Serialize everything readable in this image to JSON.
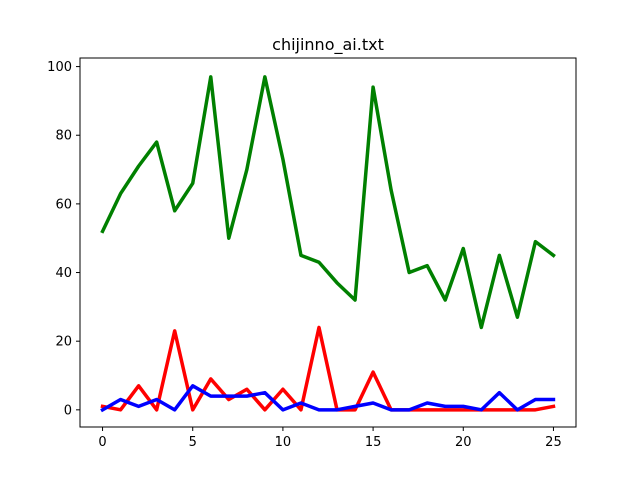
{
  "chart_data": {
    "type": "line",
    "title": "chijinno_ai.txt",
    "xlabel": "",
    "ylabel": "",
    "xlim": [
      -1.25,
      26.25
    ],
    "ylim": [
      -5,
      102.5
    ],
    "x_ticks": [
      0,
      5,
      10,
      15,
      20,
      25
    ],
    "y_ticks": [
      0,
      20,
      40,
      60,
      80,
      100
    ],
    "grid": false,
    "x": [
      0,
      1,
      2,
      3,
      4,
      5,
      6,
      7,
      8,
      9,
      10,
      11,
      12,
      13,
      14,
      15,
      16,
      17,
      18,
      19,
      20,
      21,
      22,
      23,
      24,
      25
    ],
    "series": [
      {
        "name": "green",
        "color": "#008000",
        "values": [
          52,
          63,
          71,
          78,
          58,
          66,
          97,
          50,
          70,
          97,
          73,
          45,
          43,
          37,
          32,
          94,
          64,
          40,
          42,
          32,
          47,
          24,
          45,
          27,
          49,
          45
        ]
      },
      {
        "name": "red",
        "color": "#ff0000",
        "values": [
          1,
          0,
          7,
          0,
          23,
          0,
          9,
          3,
          6,
          0,
          6,
          0,
          24,
          0,
          0,
          11,
          0,
          0,
          0,
          0,
          0,
          0,
          0,
          0,
          0,
          1
        ]
      },
      {
        "name": "blue",
        "color": "#0000ff",
        "values": [
          0,
          3,
          1,
          3,
          0,
          7,
          4,
          4,
          4,
          5,
          0,
          2,
          0,
          0,
          1,
          2,
          0,
          0,
          2,
          1,
          1,
          0,
          5,
          0,
          3,
          3
        ]
      }
    ]
  }
}
